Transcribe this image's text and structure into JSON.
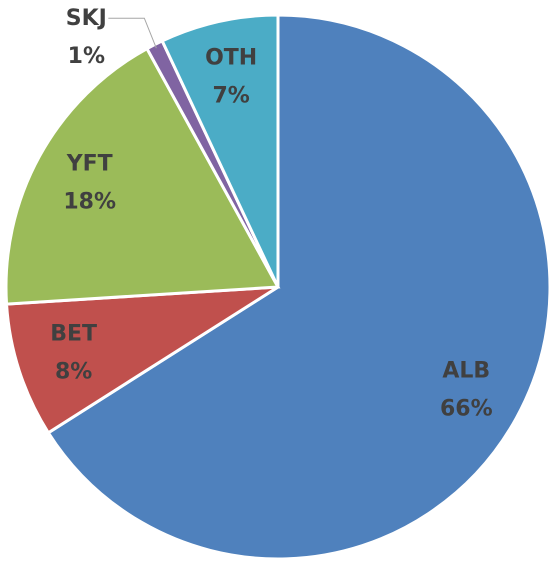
{
  "chart_data": {
    "type": "pie",
    "categories": [
      "ALB",
      "BET",
      "YFT",
      "SKJ",
      "OTH"
    ],
    "values": [
      66,
      8,
      18,
      1,
      7
    ],
    "value_labels": [
      "66%",
      "8%",
      "18%",
      "1%",
      "7%"
    ],
    "colors": [
      "#4f81bd",
      "#c0504d",
      "#9bbb59",
      "#8064a2",
      "#4bacc6"
    ]
  }
}
